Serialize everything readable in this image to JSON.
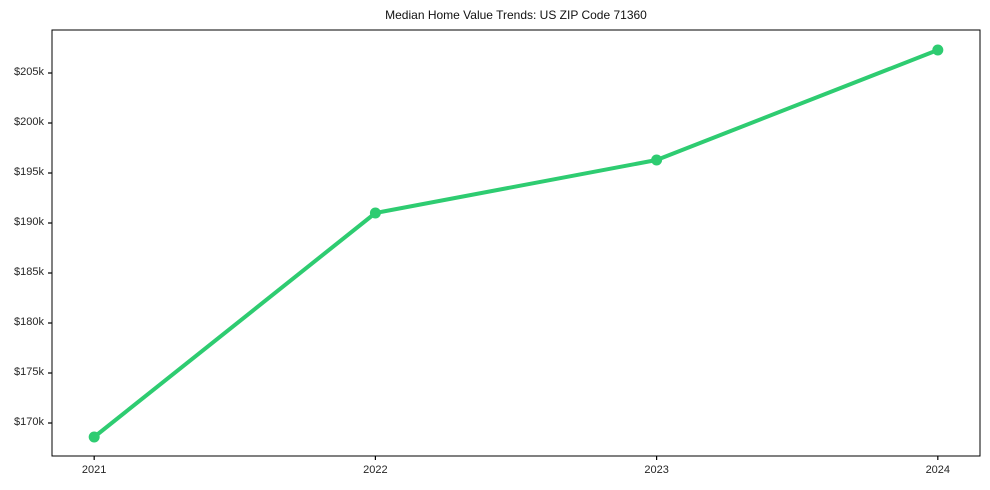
{
  "figure": {
    "background_color": "#ffffff",
    "axis_color": "#000000",
    "tick_text_color": "#262626",
    "title_text_color": "#111111"
  },
  "chart_data": {
    "type": "line",
    "title": "Median Home Value Trends: US ZIP Code 71360",
    "xlabel": "",
    "ylabel": "",
    "x": [
      2021,
      2022,
      2023,
      2024
    ],
    "categories": [
      "2021",
      "2022",
      "2023",
      "2024"
    ],
    "series": [
      {
        "name": "Median Home Value",
        "values": [
          168600,
          191000,
          196300,
          207300
        ],
        "color": "#2ecc71",
        "marker": "circle",
        "line_width": 4
      }
    ],
    "yticks": [
      170000,
      175000,
      180000,
      185000,
      190000,
      195000,
      200000,
      205000
    ],
    "ytick_labels": [
      "$170k",
      "$175k",
      "$180k",
      "$185k",
      "$190k",
      "$195k",
      "$200k",
      "$205k"
    ],
    "ylim": [
      166700,
      209300
    ],
    "xlim": [
      2020.85,
      2024.15
    ],
    "grid": false,
    "legend": "none"
  }
}
